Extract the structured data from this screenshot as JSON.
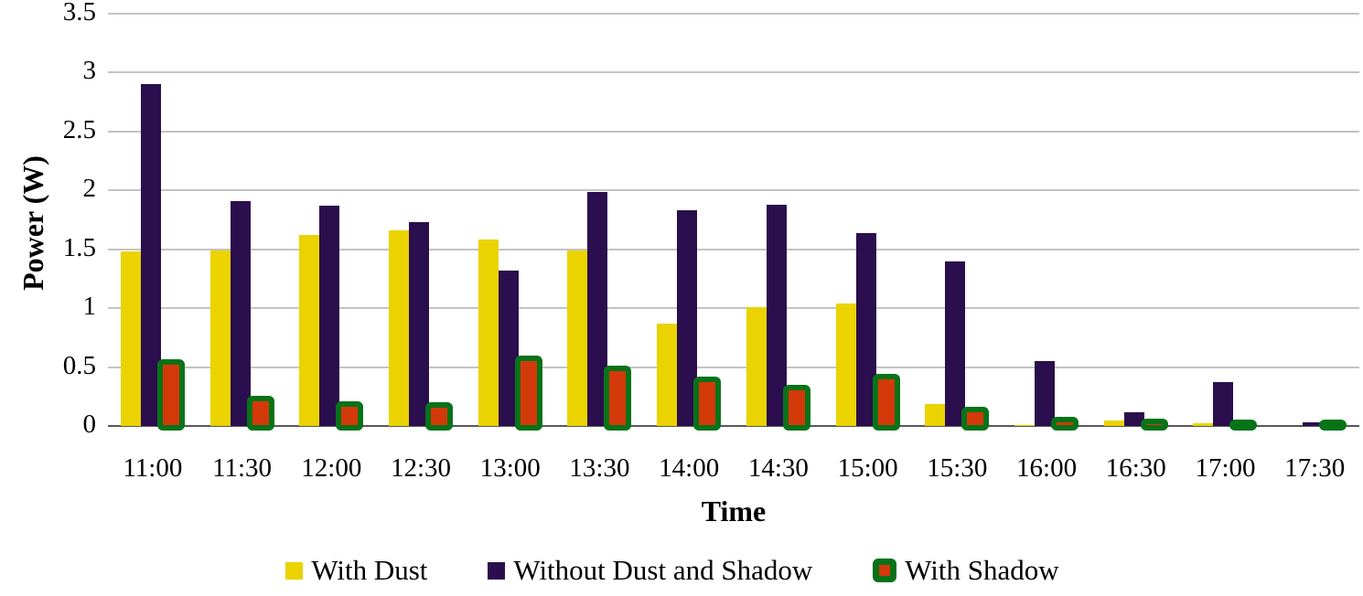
{
  "chart": {
    "y_axis_title": "Power (W)",
    "x_axis_title": "Time",
    "y_tick_labels": [
      "0",
      "0.5",
      "1",
      "1.5",
      "2",
      "2.5",
      "3",
      "3.5"
    ],
    "colors": {
      "with_dust": "#EAD300",
      "without_dust_and_shadow": "#2B0E4D",
      "with_shadow_border": "#077318",
      "with_shadow_fill": "#D4390A",
      "gridline": "#C3C3C3",
      "axis_line": "#595959"
    }
  },
  "chart_data": {
    "type": "bar",
    "title": "",
    "xlabel": "Time",
    "ylabel": "Power (W)",
    "ylim": [
      0,
      3.5
    ],
    "ytick_step": 0.5,
    "grid": true,
    "legend_position": "bottom",
    "categories": [
      "11:00",
      "11:30",
      "12:00",
      "12:30",
      "13:00",
      "13:30",
      "14:00",
      "14:30",
      "15:00",
      "15:30",
      "16:00",
      "16:30",
      "17:00",
      "17:30"
    ],
    "series": [
      {
        "name": "With Dust",
        "color": "#EAD300",
        "values": [
          1.48,
          1.49,
          1.62,
          1.66,
          1.58,
          1.49,
          0.87,
          1.01,
          1.04,
          0.19,
          0.01,
          0.05,
          0.02,
          0.0
        ]
      },
      {
        "name": "Without Dust and Shadow",
        "color": "#2B0E4D",
        "values": [
          2.9,
          1.91,
          1.87,
          1.73,
          1.32,
          1.99,
          1.83,
          1.88,
          1.64,
          1.4,
          0.55,
          0.12,
          0.37,
          0.03
        ]
      },
      {
        "name": "With Shadow",
        "color": "#077318",
        "fill_color": "#D4390A",
        "values": [
          0.57,
          0.26,
          0.21,
          0.2,
          0.6,
          0.51,
          0.42,
          0.35,
          0.44,
          0.16,
          0.08,
          0.06,
          0.05,
          0.03
        ]
      }
    ]
  }
}
